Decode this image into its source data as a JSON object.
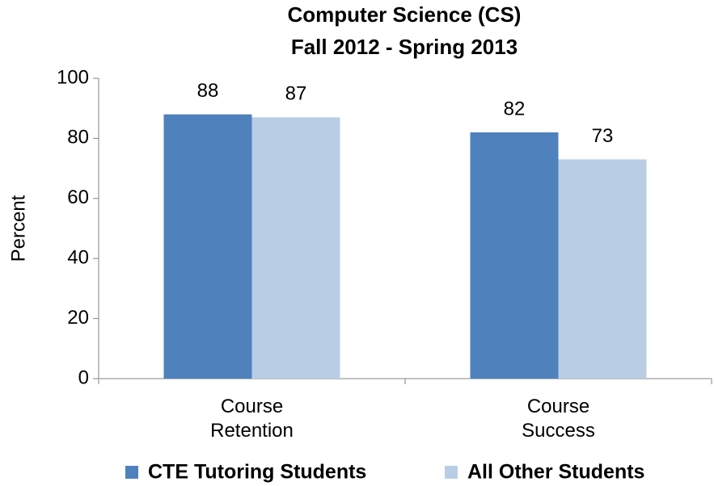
{
  "chart_data": {
    "type": "bar",
    "title": [
      "Computer Science (CS)",
      "Fall 2012 - Spring 2013"
    ],
    "ylabel": "Percent",
    "categories": [
      "Course Retention",
      "Course Success"
    ],
    "series": [
      {
        "name": "CTE Tutoring Students",
        "color": "#4f81bd",
        "values": [
          88,
          82
        ]
      },
      {
        "name": "All Other Students",
        "color": "#b9cde5",
        "values": [
          87,
          73
        ]
      }
    ],
    "ylim": [
      0,
      100
    ],
    "yticks": [
      0,
      20,
      40,
      60,
      80,
      100
    ],
    "grid": false,
    "legend": "bottom"
  }
}
